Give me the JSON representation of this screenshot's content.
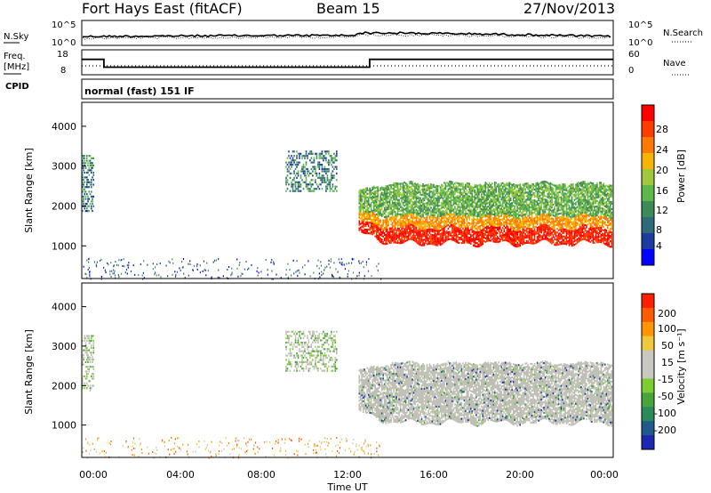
{
  "header": {
    "title": "Fort Hays East (fitACF)",
    "beam": "Beam 15",
    "date": "27/Nov/2013"
  },
  "summary_panel": {
    "left_label": "N.Sky",
    "right_label": "N.Search",
    "left_ticks": [
      "10^5",
      "10^0"
    ],
    "right_ticks": [
      "10^5",
      "10^0"
    ]
  },
  "freq_panel": {
    "left_label_1": "Freq.",
    "left_label_2": "[MHz]",
    "left_ticks": [
      "18",
      "8"
    ],
    "right_label": "Nave",
    "right_ticks": [
      "60",
      "0"
    ]
  },
  "cpid_panel": {
    "label": "CPID",
    "mode_text": "normal (fast) 151 IF"
  },
  "power_panel": {
    "ylabel": "Slant Range [km]",
    "yticks": [
      "4000",
      "3000",
      "2000",
      "1000"
    ],
    "colorbar_label": "Power [dB]",
    "colorbar_ticks": [
      "28",
      "24",
      "20",
      "16",
      "12",
      "8",
      "4"
    ],
    "colors": [
      "#0000ff",
      "#1e3ca0",
      "#2e6a7a",
      "#3c8c5a",
      "#5cb848",
      "#a0c83c",
      "#f5b400",
      "#ff7800",
      "#ff3c00",
      "#ff0000"
    ]
  },
  "velocity_panel": {
    "ylabel": "Slant Range [km]",
    "yticks": [
      "4000",
      "3000",
      "2000",
      "1000"
    ],
    "colorbar_label": "Velocity [m s⁻¹]",
    "colorbar_ticks": [
      "200",
      "100",
      "50",
      "15",
      "-15",
      "-50",
      "-100",
      "-200"
    ],
    "colors": [
      "#1c28b4",
      "#1e5a8c",
      "#2a8a5a",
      "#4aa43c",
      "#7ccc32",
      "#c8c8c0",
      "#c8c8c0",
      "#f0c83c",
      "#ff9600",
      "#ff5a00",
      "#ff1e00"
    ],
    "ground_scatter_color": "#bebeb4"
  },
  "time_axis": {
    "label": "Time UT",
    "ticks": [
      "00:00",
      "04:00",
      "08:00",
      "12:00",
      "16:00",
      "20:00",
      "00:00"
    ]
  },
  "chart_data": {
    "type": "heatmap",
    "title": "Fort Hays East (fitACF)",
    "x_range_hours": [
      0,
      24
    ],
    "y_range_km": [
      180,
      4600
    ],
    "freq_series": [
      {
        "x": 0,
        "y": 14.5
      },
      {
        "x": 1,
        "y": 10.5
      },
      {
        "x": 13,
        "y": 14.5
      },
      {
        "x": 24,
        "y": 14.5
      }
    ],
    "scatter_regions": [
      {
        "name": "band",
        "x_start": 12.5,
        "x_end": 23.9,
        "y_low": 1100,
        "y_high": 2600
      },
      {
        "name": "upper-echo",
        "x_start": 9.2,
        "x_end": 11.5,
        "y_low": 2400,
        "y_high": 3400
      },
      {
        "name": "early-echo",
        "x_start": 0,
        "x_end": 0.5,
        "y_low": 1900,
        "y_high": 3300
      },
      {
        "name": "low-scatter",
        "x_start": 0,
        "x_end": 13.5,
        "y_low": 180,
        "y_high": 700
      }
    ]
  }
}
